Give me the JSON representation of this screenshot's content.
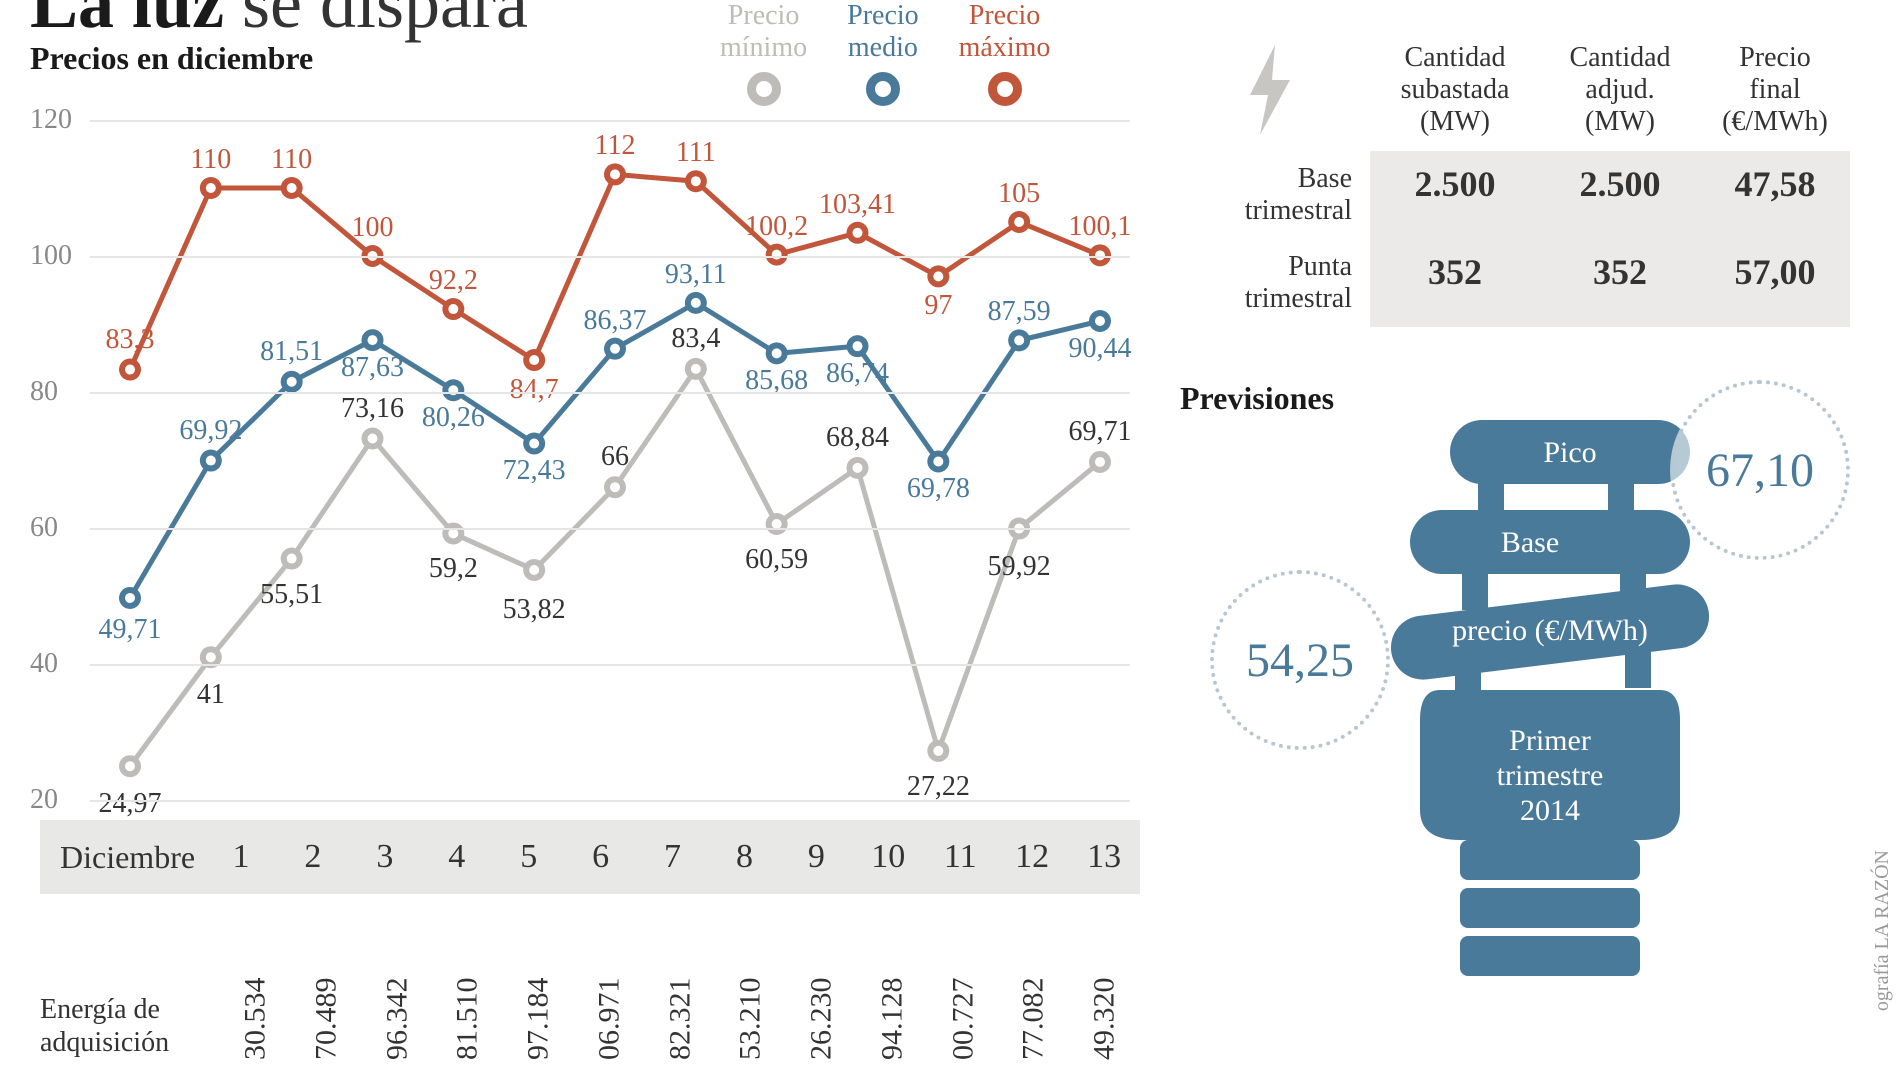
{
  "headline_strong": "La luz",
  "headline_rest": " se dispara",
  "subtitle": "Precios en diciembre",
  "legend": {
    "min": {
      "line1": "Precio",
      "line2": "mínimo",
      "color": "#bdbcb9"
    },
    "med": {
      "line1": "Precio",
      "line2": "medio",
      "color": "#4a7a9a"
    },
    "max": {
      "line1": "Precio",
      "line2": "máximo",
      "color": "#c1563b"
    }
  },
  "chart": {
    "type": "line",
    "ylim": [
      20,
      120
    ],
    "yticks": [
      20,
      40,
      60,
      80,
      100,
      120
    ],
    "grid_color": "#e5e5e5",
    "background_color": "#ffffff",
    "line_width": 5,
    "marker_outer": 11,
    "marker_inner": 5,
    "x_month": "Diciembre",
    "x_categories": [
      "1",
      "2",
      "3",
      "4",
      "5",
      "6",
      "7",
      "8",
      "9",
      "10",
      "11",
      "12",
      "13"
    ],
    "series": {
      "min": {
        "color": "#bdbcb9",
        "values": [
          24.97,
          41,
          55.51,
          73.16,
          59.2,
          53.82,
          66,
          83.4,
          60.59,
          68.84,
          27.22,
          59.92,
          69.71
        ],
        "labels": [
          "24,97",
          "41",
          "55,51",
          "73,16",
          "59,2",
          "53,82",
          "66",
          "83,4",
          "60,59",
          "68,84",
          "27,22",
          "59,92",
          "69,71"
        ],
        "label_dy": [
          38,
          38,
          36,
          -30,
          36,
          40,
          -30,
          -30,
          36,
          -30,
          36,
          38,
          -30
        ]
      },
      "med": {
        "color": "#4a7a9a",
        "values": [
          49.71,
          69.92,
          81.51,
          87.63,
          80.26,
          72.43,
          86.37,
          93.11,
          85.68,
          86.74,
          69.78,
          87.59,
          90.44
        ],
        "labels": [
          "49,71",
          "69,92",
          "81,51",
          "87,63",
          "80,26",
          "72,43",
          "86,37",
          "93,11",
          "85,68",
          "86,74",
          "69,78",
          "87,59",
          "90,44"
        ],
        "label_dy": [
          32,
          -30,
          -30,
          28,
          28,
          28,
          -28,
          -28,
          28,
          28,
          28,
          -28,
          28
        ]
      },
      "max": {
        "color": "#c1563b",
        "values": [
          83.3,
          110,
          110,
          100,
          92.2,
          84.7,
          112,
          111,
          100.2,
          103.41,
          97,
          105,
          100.1
        ],
        "labels": [
          "83,3",
          "110",
          "110",
          "100",
          "92,2",
          "84,7",
          "112",
          "111",
          "100,2",
          "103,41",
          "97",
          "105",
          "100,1"
        ],
        "label_dy": [
          -30,
          -28,
          -28,
          -28,
          -28,
          30,
          -28,
          -28,
          -28,
          -28,
          30,
          -28,
          -28
        ]
      }
    }
  },
  "energy": {
    "label_line1": "Energía de",
    "label_line2": "adquisición",
    "values_partial": [
      "30.534",
      "70.489",
      "96.342",
      "81.510",
      "97.184",
      "06.971",
      "82.321",
      "53.210",
      "26.230",
      "94.128",
      "00.727",
      "77.082",
      "49.320"
    ]
  },
  "auction_table": {
    "bolt_color": "#c7c6c3",
    "columns": [
      {
        "l1": "Cantidad",
        "l2": "subastada",
        "l3": "(MW)"
      },
      {
        "l1": "Cantidad",
        "l2": "adjud.",
        "l3": "(MW)"
      },
      {
        "l1": "Precio",
        "l2": "final",
        "l3": "(€/MWh)"
      }
    ],
    "rows": [
      {
        "label_l1": "Base",
        "label_l2": "trimestral",
        "vals": [
          "2.500",
          "2.500",
          "47,58"
        ]
      },
      {
        "label_l1": "Punta",
        "label_l2": "trimestral",
        "vals": [
          "352",
          "352",
          "57,00"
        ]
      }
    ],
    "val_bg": "#eceae8"
  },
  "previsiones": {
    "title": "Previsiones",
    "bulb_color": "#4a7a9a",
    "pico_label": "Pico",
    "pico_value": "67,10",
    "base_label": "Base",
    "base_value": "54,25",
    "precio_label": "precio (€/MWh)",
    "period_l1": "Primer",
    "period_l2": "trimestre",
    "period_l3": "2014",
    "circle_border": "#b6c7d1",
    "value_color": "#4a7a9a"
  },
  "credit": "ografía LA RAZÓN"
}
